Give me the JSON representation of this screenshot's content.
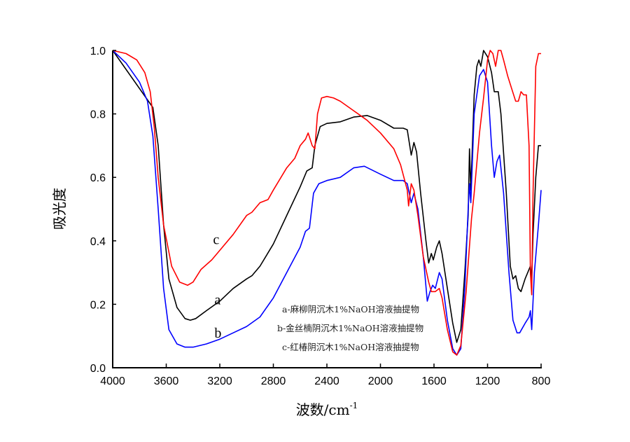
{
  "chart_data": {
    "type": "line",
    "title": "",
    "xlabel": "波数/cm",
    "xlabel_superscript": "-1",
    "ylabel": "吸光度",
    "xlim": [
      4000,
      800
    ],
    "ylim": [
      0.0,
      1.0
    ],
    "x_reversed": true,
    "grid": false,
    "x_ticks": [
      "4000",
      "3600",
      "3200",
      "2800",
      "2400",
      "2000",
      "1600",
      "1200",
      "800"
    ],
    "y_ticks": [
      "0.0",
      "0.2",
      "0.4",
      "0.6",
      "0.8",
      "1.0"
    ],
    "legend": {
      "placement": "bottom-center",
      "entries": [
        "a-麻柳阴沉木1%NaOH溶液抽提物",
        "b-金丝楠阴沉木1%NaOH溶液抽提物",
        "c-红椿阴沉木1%NaOH溶液抽提物"
      ]
    },
    "series": [
      {
        "name": "a",
        "label": "a",
        "color": "#000000",
        "label_at": [
          3240,
          0.2
        ],
        "points": [
          [
            4000,
            1.0
          ],
          [
            3700,
            0.82
          ],
          [
            3660,
            0.7
          ],
          [
            3620,
            0.45
          ],
          [
            3580,
            0.28
          ],
          [
            3520,
            0.19
          ],
          [
            3460,
            0.155
          ],
          [
            3420,
            0.15
          ],
          [
            3380,
            0.155
          ],
          [
            3300,
            0.18
          ],
          [
            3200,
            0.21
          ],
          [
            3100,
            0.25
          ],
          [
            3000,
            0.28
          ],
          [
            2960,
            0.29
          ],
          [
            2900,
            0.32
          ],
          [
            2800,
            0.39
          ],
          [
            2700,
            0.48
          ],
          [
            2600,
            0.57
          ],
          [
            2550,
            0.62
          ],
          [
            2510,
            0.63
          ],
          [
            2490,
            0.7
          ],
          [
            2450,
            0.76
          ],
          [
            2400,
            0.77
          ],
          [
            2300,
            0.775
          ],
          [
            2200,
            0.79
          ],
          [
            2100,
            0.795
          ],
          [
            2000,
            0.78
          ],
          [
            1900,
            0.755
          ],
          [
            1830,
            0.755
          ],
          [
            1800,
            0.75
          ],
          [
            1770,
            0.67
          ],
          [
            1750,
            0.71
          ],
          [
            1730,
            0.68
          ],
          [
            1700,
            0.55
          ],
          [
            1660,
            0.4
          ],
          [
            1640,
            0.33
          ],
          [
            1620,
            0.36
          ],
          [
            1605,
            0.34
          ],
          [
            1580,
            0.38
          ],
          [
            1560,
            0.4
          ],
          [
            1540,
            0.36
          ],
          [
            1500,
            0.25
          ],
          [
            1460,
            0.14
          ],
          [
            1430,
            0.08
          ],
          [
            1400,
            0.12
          ],
          [
            1370,
            0.3
          ],
          [
            1345,
            0.48
          ],
          [
            1335,
            0.69
          ],
          [
            1325,
            0.56
          ],
          [
            1300,
            0.86
          ],
          [
            1280,
            0.95
          ],
          [
            1265,
            0.97
          ],
          [
            1250,
            0.95
          ],
          [
            1230,
            1.0
          ],
          [
            1200,
            0.98
          ],
          [
            1170,
            0.93
          ],
          [
            1150,
            0.87
          ],
          [
            1120,
            0.87
          ],
          [
            1100,
            0.8
          ],
          [
            1060,
            0.55
          ],
          [
            1030,
            0.32
          ],
          [
            1010,
            0.28
          ],
          [
            990,
            0.29
          ],
          [
            970,
            0.25
          ],
          [
            950,
            0.24
          ],
          [
            920,
            0.28
          ],
          [
            900,
            0.3
          ],
          [
            880,
            0.32
          ],
          [
            870,
            0.28
          ],
          [
            860,
            0.42
          ],
          [
            840,
            0.6
          ],
          [
            820,
            0.7
          ],
          [
            800,
            0.7
          ]
        ]
      },
      {
        "name": "b",
        "label": "b",
        "color": "#0000ff",
        "label_at": [
          3240,
          0.095
        ],
        "points": [
          [
            4000,
            1.0
          ],
          [
            3900,
            0.96
          ],
          [
            3800,
            0.9
          ],
          [
            3740,
            0.84
          ],
          [
            3700,
            0.73
          ],
          [
            3660,
            0.5
          ],
          [
            3620,
            0.25
          ],
          [
            3580,
            0.12
          ],
          [
            3520,
            0.075
          ],
          [
            3460,
            0.065
          ],
          [
            3400,
            0.065
          ],
          [
            3300,
            0.075
          ],
          [
            3200,
            0.09
          ],
          [
            3100,
            0.11
          ],
          [
            3000,
            0.13
          ],
          [
            2900,
            0.16
          ],
          [
            2800,
            0.22
          ],
          [
            2700,
            0.3
          ],
          [
            2600,
            0.38
          ],
          [
            2560,
            0.43
          ],
          [
            2530,
            0.44
          ],
          [
            2500,
            0.55
          ],
          [
            2460,
            0.58
          ],
          [
            2400,
            0.59
          ],
          [
            2300,
            0.6
          ],
          [
            2200,
            0.63
          ],
          [
            2120,
            0.635
          ],
          [
            2000,
            0.61
          ],
          [
            1900,
            0.59
          ],
          [
            1830,
            0.59
          ],
          [
            1800,
            0.58
          ],
          [
            1770,
            0.52
          ],
          [
            1750,
            0.55
          ],
          [
            1720,
            0.5
          ],
          [
            1680,
            0.35
          ],
          [
            1650,
            0.21
          ],
          [
            1630,
            0.24
          ],
          [
            1610,
            0.26
          ],
          [
            1590,
            0.25
          ],
          [
            1560,
            0.3
          ],
          [
            1540,
            0.28
          ],
          [
            1500,
            0.15
          ],
          [
            1460,
            0.06
          ],
          [
            1430,
            0.04
          ],
          [
            1400,
            0.06
          ],
          [
            1370,
            0.25
          ],
          [
            1345,
            0.5
          ],
          [
            1335,
            0.58
          ],
          [
            1325,
            0.52
          ],
          [
            1300,
            0.8
          ],
          [
            1260,
            0.92
          ],
          [
            1230,
            0.94
          ],
          [
            1200,
            0.9
          ],
          [
            1170,
            0.7
          ],
          [
            1150,
            0.6
          ],
          [
            1130,
            0.65
          ],
          [
            1110,
            0.67
          ],
          [
            1080,
            0.55
          ],
          [
            1040,
            0.3
          ],
          [
            1010,
            0.15
          ],
          [
            980,
            0.11
          ],
          [
            960,
            0.11
          ],
          [
            920,
            0.14
          ],
          [
            890,
            0.16
          ],
          [
            880,
            0.18
          ],
          [
            870,
            0.12
          ],
          [
            850,
            0.3
          ],
          [
            820,
            0.45
          ],
          [
            800,
            0.56
          ]
        ]
      },
      {
        "name": "c",
        "label": "c",
        "color": "#ff0000",
        "label_at": [
          3250,
          0.39
        ],
        "points": [
          [
            4000,
            1.0
          ],
          [
            3900,
            0.99
          ],
          [
            3820,
            0.97
          ],
          [
            3760,
            0.93
          ],
          [
            3720,
            0.87
          ],
          [
            3690,
            0.76
          ],
          [
            3660,
            0.6
          ],
          [
            3620,
            0.45
          ],
          [
            3560,
            0.32
          ],
          [
            3500,
            0.27
          ],
          [
            3440,
            0.26
          ],
          [
            3400,
            0.27
          ],
          [
            3340,
            0.31
          ],
          [
            3260,
            0.34
          ],
          [
            3200,
            0.37
          ],
          [
            3100,
            0.42
          ],
          [
            3000,
            0.48
          ],
          [
            2960,
            0.49
          ],
          [
            2900,
            0.52
          ],
          [
            2840,
            0.53
          ],
          [
            2800,
            0.56
          ],
          [
            2700,
            0.63
          ],
          [
            2640,
            0.66
          ],
          [
            2600,
            0.7
          ],
          [
            2560,
            0.72
          ],
          [
            2540,
            0.74
          ],
          [
            2510,
            0.7
          ],
          [
            2490,
            0.69
          ],
          [
            2470,
            0.8
          ],
          [
            2440,
            0.85
          ],
          [
            2400,
            0.855
          ],
          [
            2350,
            0.85
          ],
          [
            2300,
            0.84
          ],
          [
            2200,
            0.81
          ],
          [
            2100,
            0.78
          ],
          [
            2000,
            0.74
          ],
          [
            1900,
            0.69
          ],
          [
            1850,
            0.64
          ],
          [
            1800,
            0.56
          ],
          [
            1790,
            0.51
          ],
          [
            1770,
            0.58
          ],
          [
            1750,
            0.56
          ],
          [
            1720,
            0.48
          ],
          [
            1680,
            0.35
          ],
          [
            1640,
            0.27
          ],
          [
            1620,
            0.24
          ],
          [
            1590,
            0.24
          ],
          [
            1560,
            0.25
          ],
          [
            1540,
            0.22
          ],
          [
            1500,
            0.12
          ],
          [
            1460,
            0.05
          ],
          [
            1430,
            0.04
          ],
          [
            1400,
            0.07
          ],
          [
            1360,
            0.24
          ],
          [
            1320,
            0.47
          ],
          [
            1300,
            0.55
          ],
          [
            1260,
            0.74
          ],
          [
            1230,
            0.85
          ],
          [
            1200,
            0.97
          ],
          [
            1180,
            1.0
          ],
          [
            1160,
            0.99
          ],
          [
            1140,
            0.95
          ],
          [
            1120,
            1.0
          ],
          [
            1100,
            1.0
          ],
          [
            1080,
            0.97
          ],
          [
            1050,
            0.92
          ],
          [
            1020,
            0.88
          ],
          [
            990,
            0.84
          ],
          [
            970,
            0.84
          ],
          [
            950,
            0.87
          ],
          [
            930,
            0.86
          ],
          [
            910,
            0.86
          ],
          [
            890,
            0.7
          ],
          [
            880,
            0.3
          ],
          [
            870,
            0.23
          ],
          [
            860,
            0.55
          ],
          [
            840,
            0.95
          ],
          [
            820,
            0.99
          ],
          [
            800,
            0.99
          ]
        ]
      }
    ]
  }
}
